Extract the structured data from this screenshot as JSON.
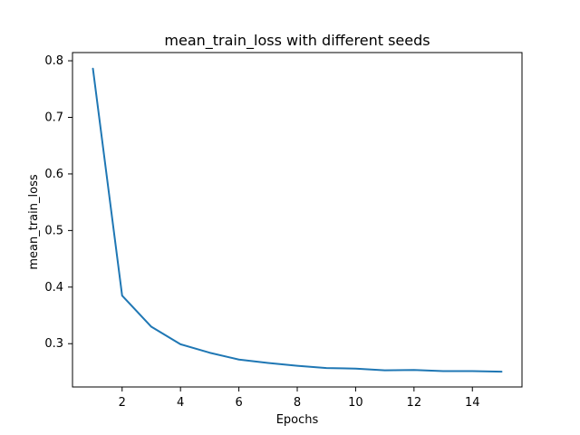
{
  "chart_data": {
    "type": "line",
    "title": "mean_train_loss with different seeds",
    "xlabel": "Epochs",
    "ylabel": "mean_train_loss",
    "xlim": [
      0.3,
      15.7
    ],
    "ylim": [
      0.2235,
      0.8145
    ],
    "x_ticks": [
      2,
      4,
      6,
      8,
      10,
      12,
      14
    ],
    "y_ticks": [
      0.3,
      0.4,
      0.5,
      0.6,
      0.7,
      0.8
    ],
    "x_tick_labels": [
      "2",
      "4",
      "6",
      "8",
      "10",
      "12",
      "14"
    ],
    "y_tick_labels": [
      "0.3",
      "0.4",
      "0.5",
      "0.6",
      "0.7",
      "0.8"
    ],
    "grid": false,
    "legend": "none",
    "series": [
      {
        "color": "#1f77b4",
        "x": [
          1,
          2,
          3,
          4,
          5,
          6,
          7,
          8,
          9,
          10,
          11,
          12,
          13,
          14,
          15
        ],
        "values": [
          0.786,
          0.385,
          0.33,
          0.299,
          0.284,
          0.272,
          0.266,
          0.261,
          0.257,
          0.256,
          0.253,
          0.2535,
          0.2515,
          0.2515,
          0.2505
        ]
      }
    ]
  }
}
